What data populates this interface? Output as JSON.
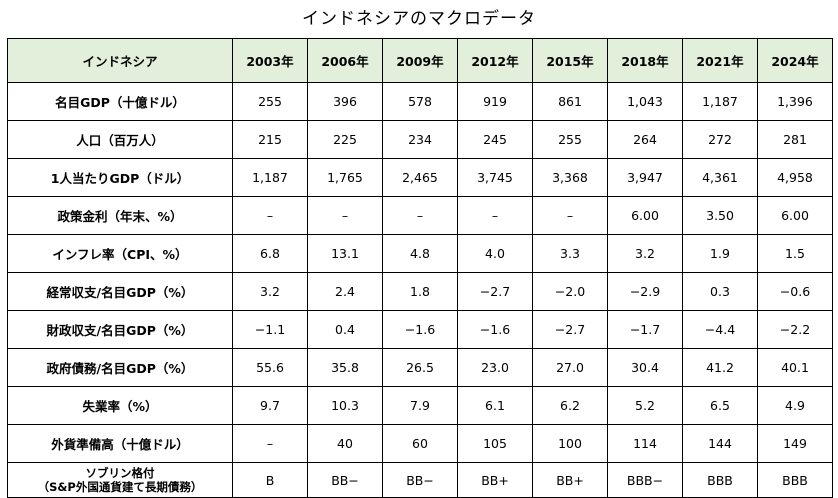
{
  "title": "インドネシアのマクロデータ",
  "table": {
    "header": [
      "インドネシア",
      "2003年",
      "2006年",
      "2009年",
      "2012年",
      "2015年",
      "2018年",
      "2021年",
      "2024年"
    ],
    "rows": [
      {
        "label": "名目GDP（十億ドル）",
        "values": [
          "255",
          "396",
          "578",
          "919",
          "861",
          "1,043",
          "1,187",
          "1,396"
        ]
      },
      {
        "label": "人口（百万人）",
        "values": [
          "215",
          "225",
          "234",
          "245",
          "255",
          "264",
          "272",
          "281"
        ]
      },
      {
        "label": "1人当たりGDP（ドル）",
        "values": [
          "1,187",
          "1,765",
          "2,465",
          "3,745",
          "3,368",
          "3,947",
          "4,361",
          "4,958"
        ]
      },
      {
        "label": "政策金利（年末、%）",
        "values": [
          "–",
          "–",
          "–",
          "–",
          "–",
          "6.00",
          "3.50",
          "6.00"
        ]
      },
      {
        "label": "インフレ率（CPI、%）",
        "values": [
          "6.8",
          "13.1",
          "4.8",
          "4.0",
          "3.3",
          "3.2",
          "1.9",
          "1.5"
        ]
      },
      {
        "label": "経常収支/名目GDP（%）",
        "values": [
          "3.2",
          "2.4",
          "1.8",
          "−2.7",
          "−2.0",
          "−2.9",
          "0.3",
          "−0.6"
        ]
      },
      {
        "label": "財政収支/名目GDP（%）",
        "values": [
          "−1.1",
          "0.4",
          "−1.6",
          "−1.6",
          "−2.7",
          "−1.7",
          "−4.4",
          "−2.2"
        ]
      },
      {
        "label": "政府債務/名目GDP（%）",
        "values": [
          "55.6",
          "35.8",
          "26.5",
          "23.0",
          "27.0",
          "30.4",
          "41.2",
          "40.1"
        ]
      },
      {
        "label": "失業率（%）",
        "values": [
          "9.7",
          "10.3",
          "7.9",
          "6.1",
          "6.2",
          "5.2",
          "6.5",
          "4.9"
        ]
      },
      {
        "label": "外貨準備高（十億ドル）",
        "values": [
          "–",
          "40",
          "60",
          "105",
          "100",
          "114",
          "144",
          "149"
        ]
      }
    ],
    "last_row": {
      "label_line1": "ソブリン格付",
      "label_line2": "（S&P外国通貨建て長期債務）",
      "values": [
        "B",
        "BB−",
        "BB−",
        "BB+",
        "BB+",
        "BBB−",
        "BBB",
        "BBB"
      ]
    }
  }
}
